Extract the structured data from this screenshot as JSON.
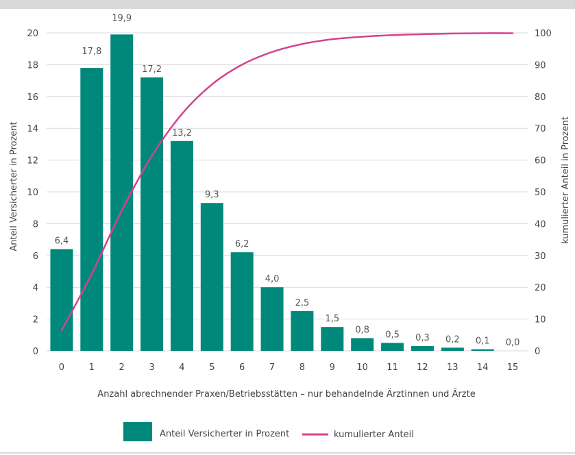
{
  "chart_data": {
    "type": "bar",
    "categories": [
      "0",
      "1",
      "2",
      "3",
      "4",
      "5",
      "6",
      "7",
      "8",
      "9",
      "10",
      "11",
      "12",
      "13",
      "14",
      "15"
    ],
    "series": [
      {
        "name": "Anteil Versicherter in Prozent",
        "type": "bar",
        "axis": "left",
        "values": [
          6.4,
          17.8,
          19.9,
          17.2,
          13.2,
          9.3,
          6.2,
          4.0,
          2.5,
          1.5,
          0.8,
          0.5,
          0.3,
          0.2,
          0.1,
          0.0
        ],
        "labels": [
          "6,4",
          "17,8",
          "19,9",
          "17,2",
          "13,2",
          "9,3",
          "6,2",
          "4,0",
          "2,5",
          "1,5",
          "0,8",
          "0,5",
          "0,3",
          "0,2",
          "0,1",
          "0,0"
        ]
      },
      {
        "name": "kumulierter Anteil",
        "type": "line",
        "axis": "right",
        "values": [
          6.4,
          24.2,
          44.1,
          61.3,
          74.5,
          83.8,
          90.0,
          94.0,
          96.5,
          98.0,
          98.8,
          99.3,
          99.6,
          99.8,
          99.9,
          99.9
        ]
      }
    ],
    "xlabel": "Anzahl abrechnender Praxen/Betriebsstätten – nur behandelnde Ärztinnen und Ärzte",
    "ylabel": "Anteil Versicherter in Prozent",
    "y2label": "kumulierter Anteil in Prozent",
    "ylim": [
      0,
      20
    ],
    "y2lim": [
      0,
      100
    ],
    "yticks": [
      0,
      2,
      4,
      6,
      8,
      10,
      12,
      14,
      16,
      18,
      20
    ],
    "y2ticks": [
      0,
      10,
      20,
      30,
      40,
      50,
      60,
      70,
      80,
      90,
      100
    ],
    "grid": true,
    "legend_position": "bottom",
    "colors": {
      "bar": "#00897b",
      "line": "#d6418f",
      "grid": "#d9d9d9"
    }
  }
}
